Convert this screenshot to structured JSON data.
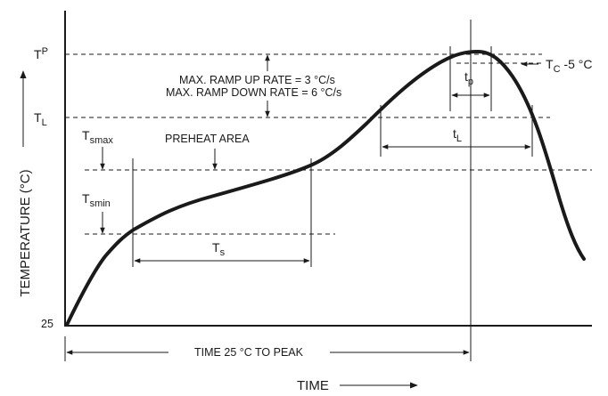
{
  "axes": {
    "y_title": "TEMPERATURE (°C)",
    "x_title": "TIME",
    "y_origin_label": "25"
  },
  "temperature_labels": {
    "tp": {
      "main": "T",
      "sub": "P"
    },
    "tl": {
      "main": "T",
      "sub": "L"
    },
    "tsmax": {
      "main": "T",
      "sub": "smax"
    },
    "tsmin": {
      "main": "T",
      "sub": "smin"
    }
  },
  "annotations": {
    "ramp_up": "MAX. RAMP UP RATE = 3 °C/s",
    "ramp_down": "MAX. RAMP DOWN RATE = 6 °C/s",
    "preheat": "PREHEAT AREA",
    "tc": {
      "main": "T",
      "sub": "C",
      "suffix": " -5 °C"
    },
    "tp_time": {
      "main": "t",
      "sub": "p"
    },
    "tl_time": {
      "main": "t",
      "sub": "L"
    },
    "ts_time": {
      "main": "T",
      "sub": "s"
    },
    "time_to_peak": "TIME 25 °C TO PEAK"
  }
}
